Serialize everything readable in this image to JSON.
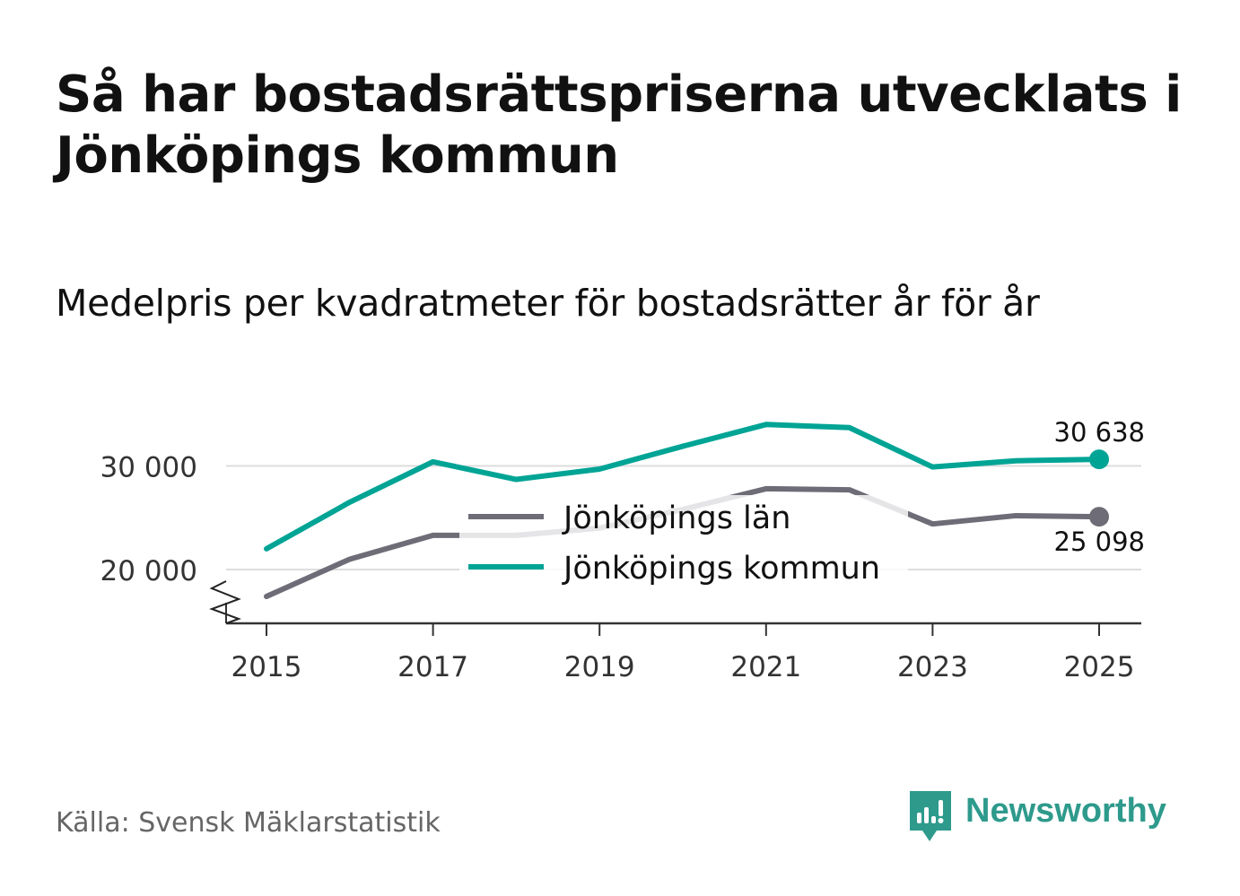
{
  "title": "Så har bostadsrättspriserna utvecklats i Jönköpings kommun",
  "subtitle": "Medelpris per kvadratmeter för bostadsrätter år för år",
  "source": "Källa: Svensk Mäklarstatistik",
  "brand": "Newsworthy",
  "colors": {
    "kommun": "#00a495",
    "lan": "#6e6c76",
    "grid": "#dddddd",
    "axis": "#333333",
    "brand": "#2e9a8c"
  },
  "chart_data": {
    "type": "line",
    "x": [
      2015,
      2016,
      2017,
      2018,
      2019,
      2020,
      2021,
      2022,
      2023,
      2024,
      2025
    ],
    "xticks": [
      "2015",
      "2017",
      "2019",
      "2021",
      "2023",
      "2025"
    ],
    "yticks": [
      {
        "value": 20000,
        "label": "20 000"
      },
      {
        "value": 30000,
        "label": "30 000"
      }
    ],
    "ylim": [
      15000,
      35000
    ],
    "series": [
      {
        "name": "Jönköpings län",
        "key": "lan",
        "values": [
          17400,
          21000,
          23300,
          23300,
          24000,
          25800,
          27800,
          27700,
          24400,
          25200,
          25098
        ],
        "end_label": "25 098"
      },
      {
        "name": "Jönköpings kommun",
        "key": "kommun",
        "values": [
          22000,
          26500,
          30400,
          28700,
          29700,
          31900,
          34000,
          33700,
          29900,
          30500,
          30638
        ],
        "end_label": "30 638"
      }
    ],
    "legend": [
      "Jönköpings län",
      "Jönköpings kommun"
    ],
    "axis_break": true
  }
}
